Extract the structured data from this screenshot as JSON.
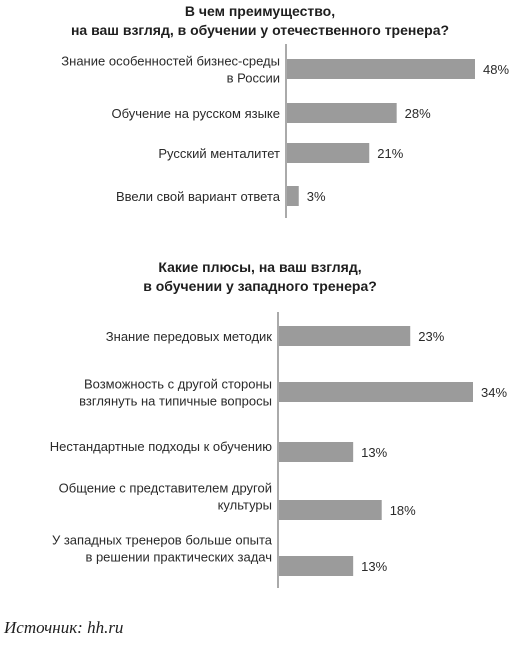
{
  "chart_data": [
    {
      "type": "bar",
      "orientation": "horizontal",
      "title": "В чем преимущество,\nна ваш взгляд, в обучении у отечественного тренера?",
      "categories": [
        "Знание особенностей бизнес-среды\nв России",
        "Обучение на русском языке",
        "Русский менталитет",
        "Ввели свой вариант ответа"
      ],
      "values": [
        48,
        28,
        21,
        3
      ],
      "value_labels": [
        "48%",
        "28%",
        "21%",
        "3%"
      ],
      "unit": "%",
      "xlim": [
        0,
        48
      ],
      "bar_color": "#9b9b9b"
    },
    {
      "type": "bar",
      "orientation": "horizontal",
      "title": "Какие плюсы, на ваш взгляд,\nв обучении у западного тренера?",
      "categories": [
        "Знание передовых методик",
        "Возможность с другой стороны\nвзглянуть на типичные вопросы",
        "Нестандартные подходы к обучению",
        "Общение с представителем другой\nкультуры",
        "У западных тренеров больше опыта\nв решении практических задач"
      ],
      "values": [
        23,
        34,
        13,
        18,
        13
      ],
      "value_labels": [
        "23%",
        "34%",
        "13%",
        "18%",
        "13%"
      ],
      "unit": "%",
      "xlim": [
        0,
        34
      ],
      "bar_color": "#9b9b9b"
    }
  ],
  "source": "Источник: hh.ru"
}
